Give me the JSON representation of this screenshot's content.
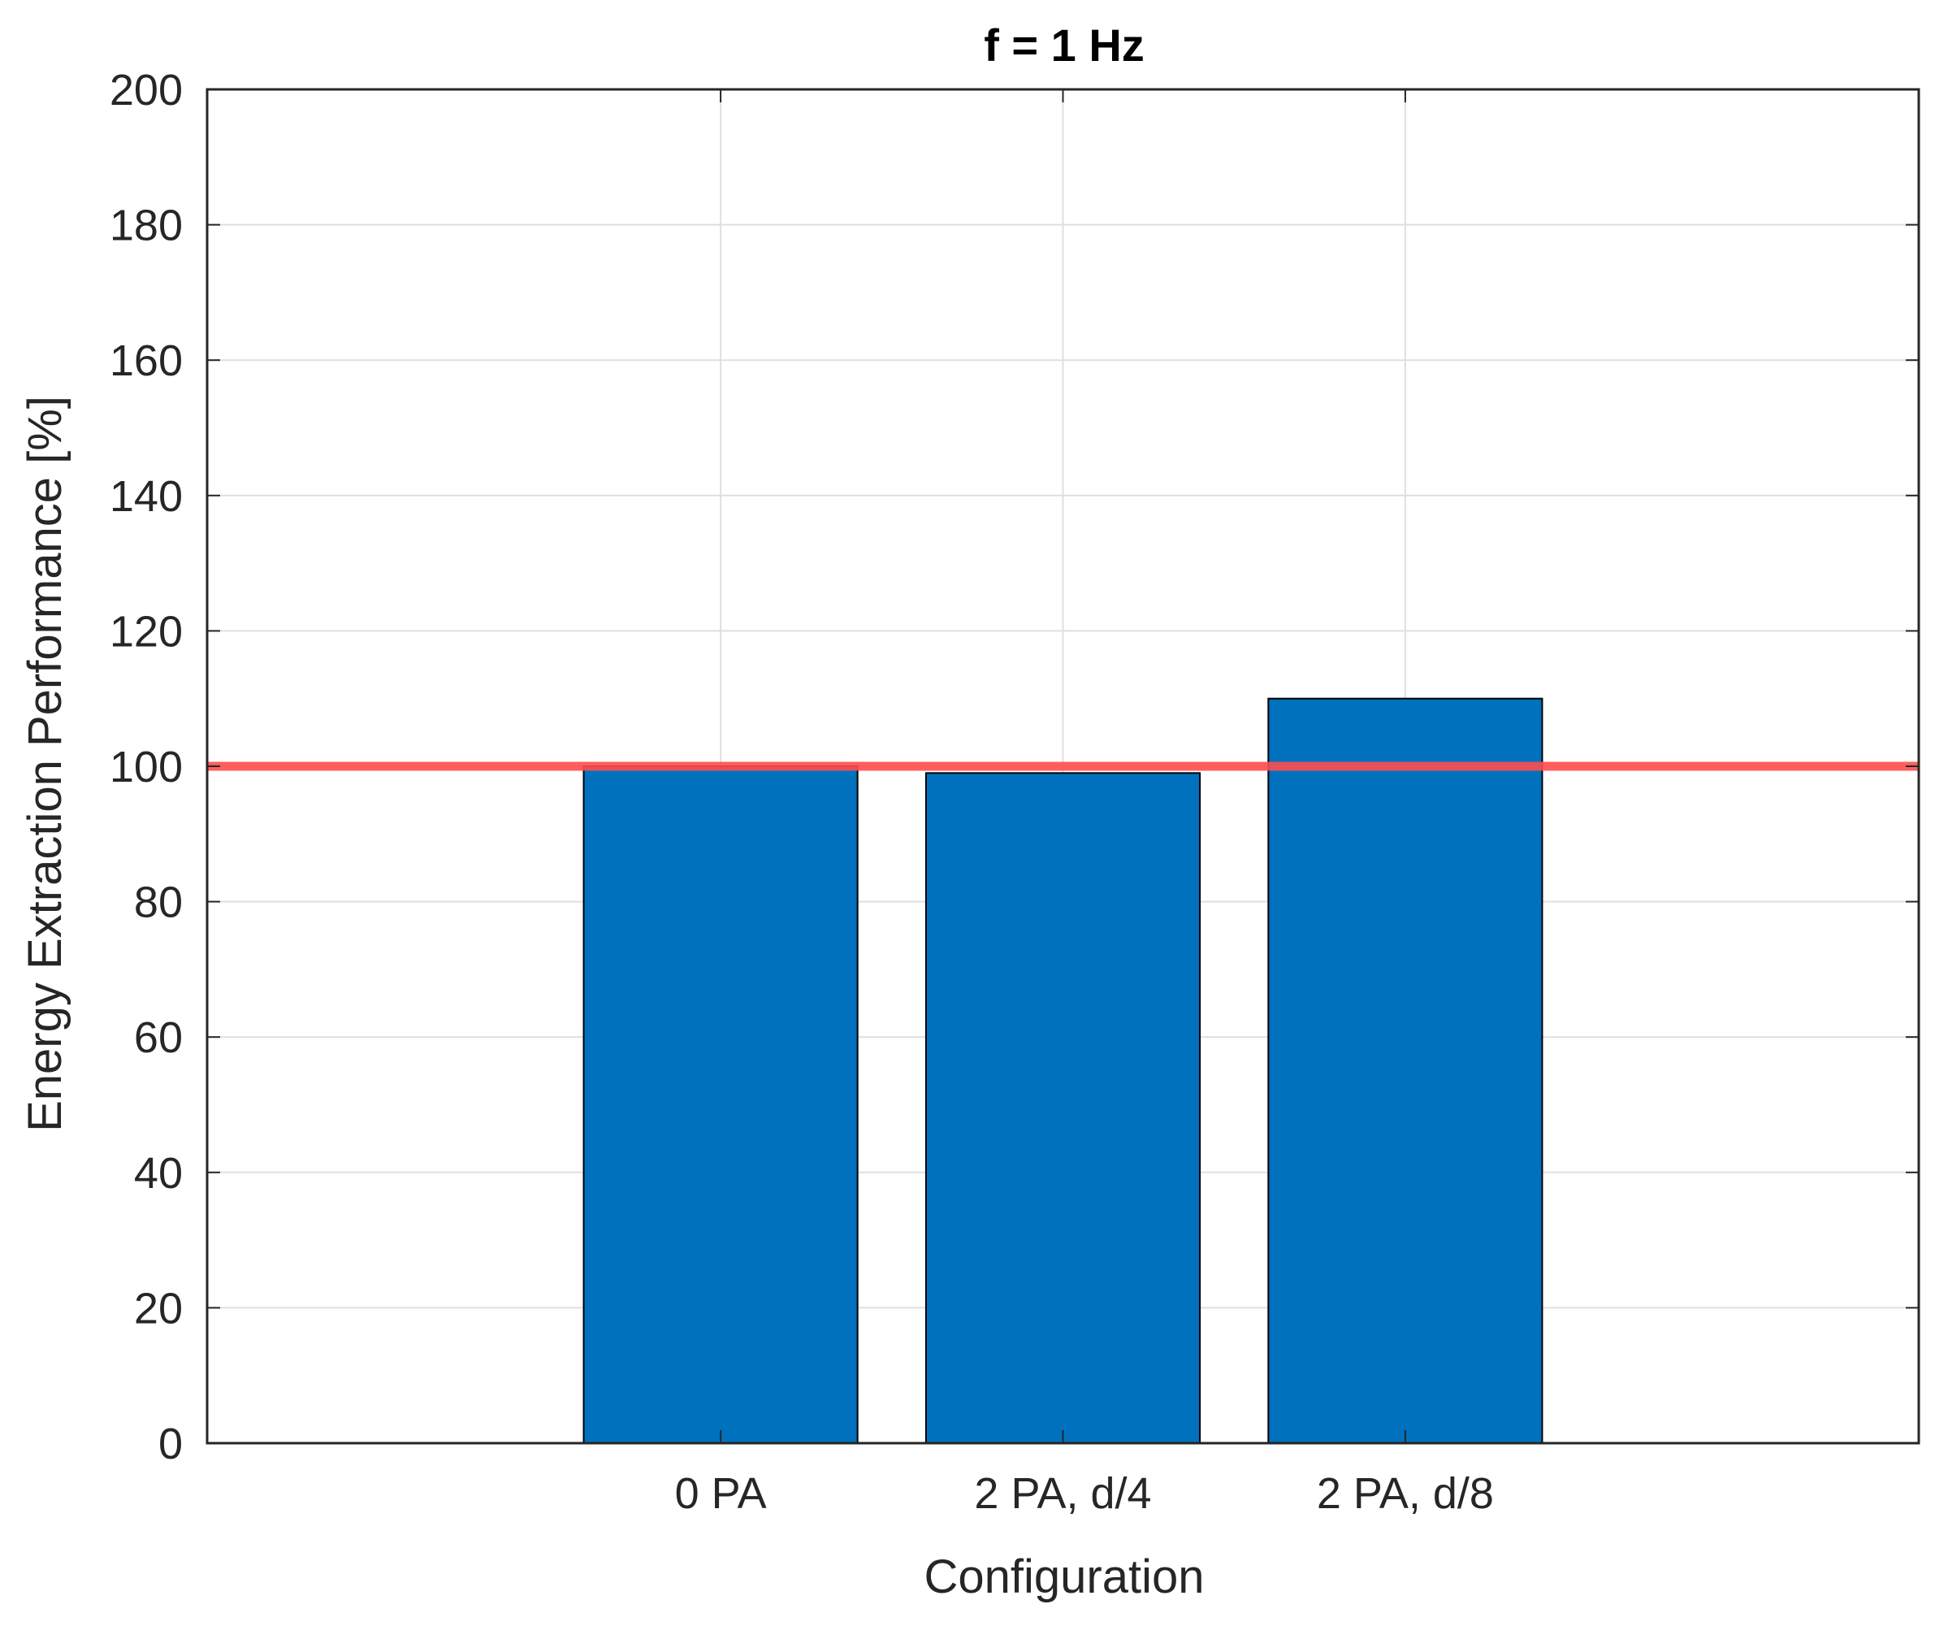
{
  "chart_data": {
    "type": "bar",
    "title": "f = 1 Hz",
    "xlabel": "Configuration",
    "ylabel": "Energy Extraction Performance [%]",
    "categories": [
      "0 PA",
      "2 PA, d/4",
      "2 PA, d/8"
    ],
    "values": [
      100,
      99,
      110
    ],
    "ylim": [
      0,
      200
    ],
    "yticks": [
      "0",
      "20",
      "40",
      "60",
      "80",
      "100",
      "120",
      "140",
      "160",
      "180",
      "200"
    ],
    "reference_line": {
      "y": 100,
      "color": "#ff4d4d"
    },
    "grid": true,
    "bar_color": "#0072bd",
    "bar_edge_color": "#000000",
    "axis_color": "#262626",
    "grid_color": "#dfdfdf"
  }
}
